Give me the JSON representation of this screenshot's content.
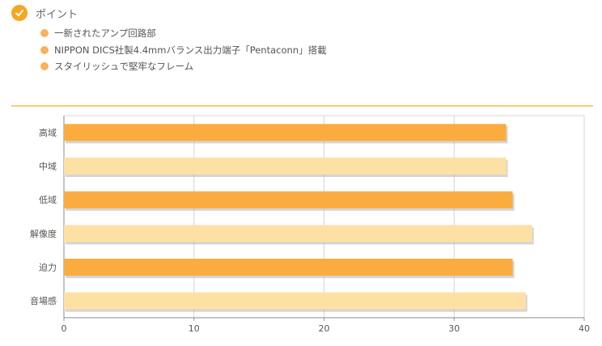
{
  "header": {
    "title": "ポイント",
    "icon": "check-icon",
    "accent": "#f6a623"
  },
  "points": [
    {
      "text": "一新されたアンプ回路部"
    },
    {
      "text": "NIPPON DICS社製4.4mmバランス出力端子「Pentaconn」搭載"
    },
    {
      "text": "スタイリッシュで堅牢なフレーム"
    }
  ],
  "chart_data": {
    "type": "bar",
    "orientation": "horizontal",
    "categories": [
      "高域",
      "中域",
      "低域",
      "解像度",
      "迫力",
      "音場感"
    ],
    "values": [
      34,
      34,
      34.5,
      36,
      34.5,
      35.5
    ],
    "xlim": [
      0,
      40
    ],
    "xticks": [
      0,
      10,
      20,
      30,
      40
    ],
    "grid": true,
    "colors": [
      "#fbac3f",
      "#fde0a4"
    ]
  }
}
